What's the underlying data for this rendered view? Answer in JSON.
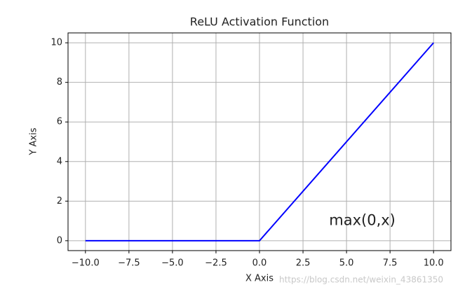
{
  "chart_data": {
    "type": "line",
    "title": "ReLU Activation Function",
    "x_label": "X Axis",
    "y_label": "Y Axis",
    "x": [
      -10,
      0,
      10
    ],
    "series": [
      {
        "name": "ReLU",
        "color": "#0000ff",
        "values": [
          0,
          0,
          10
        ]
      }
    ],
    "xlim": [
      -11,
      11
    ],
    "ylim": [
      -0.5,
      10.5
    ],
    "xticks": [
      {
        "value": -10,
        "label": "−10.0"
      },
      {
        "value": -7.5,
        "label": "−7.5"
      },
      {
        "value": -5,
        "label": "−5.0"
      },
      {
        "value": -2.5,
        "label": "−2.5"
      },
      {
        "value": 0,
        "label": "0.0"
      },
      {
        "value": 2.5,
        "label": "2.5"
      },
      {
        "value": 5,
        "label": "5.0"
      },
      {
        "value": 7.5,
        "label": "7.5"
      },
      {
        "value": 10,
        "label": "10.0"
      }
    ],
    "yticks": [
      0,
      2,
      4,
      6,
      8,
      10
    ],
    "grid": true,
    "annotation": {
      "text": "max(0,x)",
      "x": 4,
      "y": 1
    },
    "watermark": "https://blog.csdn.net/weixin_43861350"
  }
}
